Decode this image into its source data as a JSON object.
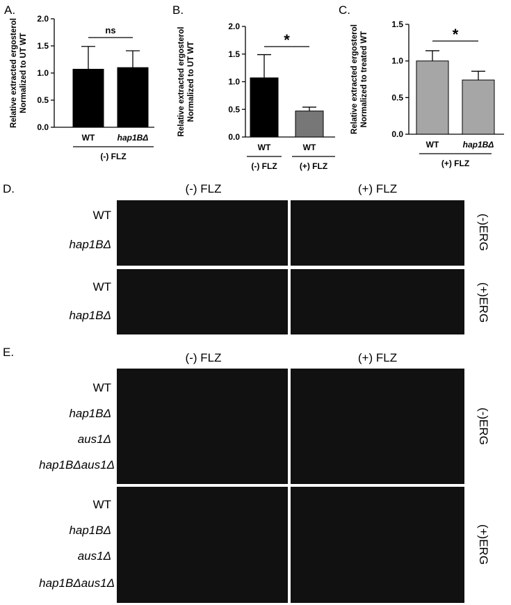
{
  "panels": {
    "a": "A.",
    "b": "B.",
    "c": "C.",
    "d": "D.",
    "e": "E."
  },
  "chart_data": [
    {
      "type": "bar",
      "title": "",
      "ylabel": "Relative extracted ergosterol Normalized to UT WT",
      "ylabel_lines": [
        "Relative extracted ergosterol",
        "Normalized to UT WT"
      ],
      "categories": [
        "WT",
        "hap1BΔ"
      ],
      "group_labels": [
        "(-) FLZ"
      ],
      "values": [
        1.07,
        1.1
      ],
      "errors": [
        0.42,
        0.31
      ],
      "ylim": [
        0,
        2.0
      ],
      "yticks": [
        "0.0",
        "0.5",
        "1.0",
        "1.5",
        "2.0"
      ],
      "significance": "ns",
      "colors": [
        "#000000",
        "#000000"
      ]
    },
    {
      "type": "bar",
      "title": "",
      "ylabel": "Relative extracted ergosterol Normalized to UT WT",
      "ylabel_lines": [
        "Relative extracted ergosterol",
        "Normalized to UT WT"
      ],
      "categories": [
        "WT",
        "WT"
      ],
      "group_labels": [
        "(-) FLZ",
        "(+) FLZ"
      ],
      "values": [
        1.07,
        0.47
      ],
      "errors": [
        0.42,
        0.07
      ],
      "ylim": [
        0,
        2.0
      ],
      "yticks": [
        "0.0",
        "0.5",
        "1.0",
        "1.5",
        "2.0"
      ],
      "significance": "*",
      "colors": [
        "#000000",
        "#777777"
      ]
    },
    {
      "type": "bar",
      "title": "",
      "ylabel": "Relative extracted ergosterol Normalized to treated WT",
      "ylabel_lines": [
        "Relative extracted ergosterol",
        "Normalized to treated WT"
      ],
      "categories": [
        "WT",
        "hap1BΔ"
      ],
      "group_labels": [
        "(+) FLZ"
      ],
      "values": [
        1.0,
        0.74
      ],
      "errors": [
        0.14,
        0.12
      ],
      "ylim": [
        0,
        1.5
      ],
      "yticks": [
        "0.0",
        "0.5",
        "1.0",
        "1.5"
      ],
      "significance": "*",
      "colors": [
        "#a6a6a6",
        "#a6a6a6"
      ]
    }
  ],
  "spot_d": {
    "conditions": [
      "(-) FLZ",
      "(+) FLZ"
    ],
    "media": [
      "(-)ERG",
      "(+)ERG"
    ],
    "strains": [
      "WT",
      "hap1BΔ"
    ]
  },
  "spot_e": {
    "conditions": [
      "(-) FLZ",
      "(+) FLZ"
    ],
    "media": [
      "(-)ERG",
      "(+)ERG"
    ],
    "strains": [
      "WT",
      "hap1BΔ",
      "aus1Δ",
      "hap1BΔaus1Δ"
    ]
  }
}
